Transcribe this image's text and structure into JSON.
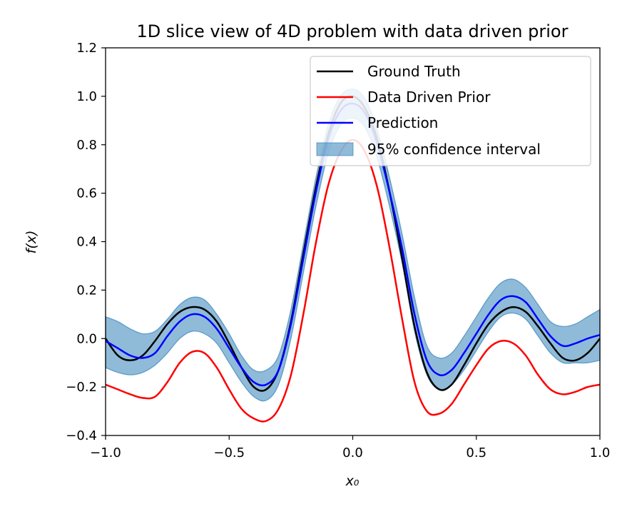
{
  "chart_data": {
    "type": "line",
    "title": "1D slice view of 4D problem with data driven prior",
    "xlabel": "x₀",
    "ylabel": "f(x)",
    "xlim": [
      -1.0,
      1.0
    ],
    "ylim": [
      -0.4,
      1.2
    ],
    "xticks": [
      "−1.0",
      "−0.5",
      "0.0",
      "0.5",
      "1.0"
    ],
    "xtick_values": [
      -1.0,
      -0.5,
      0.0,
      0.5,
      1.0
    ],
    "yticks": [
      "−0.4",
      "−0.2",
      "0.0",
      "0.2",
      "0.4",
      "0.6",
      "0.8",
      "1.0",
      "1.2"
    ],
    "ytick_values": [
      -0.4,
      -0.2,
      0.0,
      0.2,
      0.4,
      0.6,
      0.8,
      1.0,
      1.2
    ],
    "legend_position": "top-right",
    "grid": false,
    "x": [
      -1.0,
      -0.95,
      -0.9,
      -0.85,
      -0.8,
      -0.75,
      -0.7,
      -0.65,
      -0.6,
      -0.55,
      -0.5,
      -0.45,
      -0.4,
      -0.35,
      -0.3,
      -0.25,
      -0.2,
      -0.15,
      -0.1,
      -0.05,
      0.0,
      0.05,
      0.1,
      0.15,
      0.2,
      0.25,
      0.3,
      0.35,
      0.4,
      0.45,
      0.5,
      0.55,
      0.6,
      0.65,
      0.7,
      0.75,
      0.8,
      0.85,
      0.9,
      0.95,
      1.0
    ],
    "series": [
      {
        "name": "Ground Truth",
        "color": "#000000",
        "values": [
          0.0,
          -0.07,
          -0.09,
          -0.07,
          -0.01,
          0.06,
          0.11,
          0.13,
          0.12,
          0.07,
          -0.02,
          -0.12,
          -0.2,
          -0.21,
          -0.13,
          0.07,
          0.35,
          0.62,
          0.84,
          0.97,
          1.0,
          0.95,
          0.82,
          0.6,
          0.33,
          0.05,
          -0.14,
          -0.21,
          -0.19,
          -0.11,
          -0.02,
          0.06,
          0.11,
          0.13,
          0.11,
          0.05,
          -0.02,
          -0.08,
          -0.09,
          -0.06,
          0.0
        ]
      },
      {
        "name": "Data Driven Prior",
        "color": "#ff0000",
        "values": [
          -0.19,
          -0.21,
          -0.23,
          -0.245,
          -0.24,
          -0.18,
          -0.1,
          -0.055,
          -0.06,
          -0.12,
          -0.21,
          -0.29,
          -0.33,
          -0.34,
          -0.29,
          -0.15,
          0.1,
          0.39,
          0.63,
          0.77,
          0.82,
          0.77,
          0.62,
          0.37,
          0.08,
          -0.18,
          -0.3,
          -0.31,
          -0.27,
          -0.19,
          -0.11,
          -0.04,
          -0.01,
          -0.02,
          -0.07,
          -0.15,
          -0.21,
          -0.23,
          -0.22,
          -0.2,
          -0.19
        ]
      },
      {
        "name": "Prediction",
        "color": "#0000ff",
        "values": [
          -0.01,
          -0.04,
          -0.07,
          -0.08,
          -0.06,
          0.01,
          0.07,
          0.1,
          0.09,
          0.04,
          -0.04,
          -0.12,
          -0.18,
          -0.19,
          -0.13,
          0.06,
          0.33,
          0.6,
          0.82,
          0.94,
          0.97,
          0.93,
          0.8,
          0.6,
          0.37,
          0.1,
          -0.09,
          -0.15,
          -0.13,
          -0.06,
          0.02,
          0.1,
          0.16,
          0.175,
          0.15,
          0.08,
          0.01,
          -0.03,
          -0.02,
          0.0,
          0.015
        ]
      }
    ],
    "band": {
      "name": "95% confidence interval",
      "fill": "#1f77b4",
      "upper": [
        0.09,
        0.07,
        0.04,
        0.02,
        0.03,
        0.08,
        0.14,
        0.17,
        0.16,
        0.1,
        0.02,
        -0.07,
        -0.13,
        -0.13,
        -0.07,
        0.12,
        0.39,
        0.66,
        0.88,
        1.0,
        1.03,
        0.99,
        0.86,
        0.66,
        0.43,
        0.17,
        -0.03,
        -0.08,
        -0.06,
        0.01,
        0.09,
        0.17,
        0.23,
        0.245,
        0.21,
        0.14,
        0.07,
        0.05,
        0.06,
        0.09,
        0.12
      ],
      "lower": [
        -0.12,
        -0.14,
        -0.15,
        -0.14,
        -0.11,
        -0.06,
        0.0,
        0.03,
        0.02,
        -0.02,
        -0.1,
        -0.18,
        -0.24,
        -0.255,
        -0.19,
        0.0,
        0.27,
        0.54,
        0.76,
        0.88,
        0.91,
        0.87,
        0.74,
        0.54,
        0.31,
        0.03,
        -0.15,
        -0.21,
        -0.19,
        -0.13,
        -0.05,
        0.03,
        0.09,
        0.105,
        0.08,
        0.01,
        -0.06,
        -0.1,
        -0.1,
        -0.1,
        -0.09
      ]
    }
  }
}
